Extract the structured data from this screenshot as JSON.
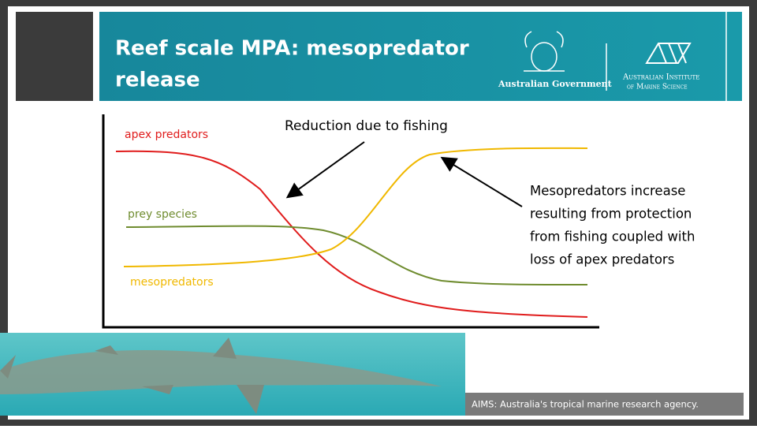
{
  "header": {
    "title_lines": [
      "Reef scale MPA: mesopredator",
      "release"
    ],
    "government": "Australian Government",
    "institute_lines": [
      "Australian Institute",
      "of Marine Science"
    ]
  },
  "diagram": {
    "curves": {
      "apex": "apex predators",
      "prey": "prey species",
      "meso": "mesopredators"
    },
    "annotations": {
      "reduction": "Reduction due to fishing",
      "increase_lines": [
        "Mesopredators increase",
        "resulting from protection",
        "from fishing coupled with",
        "loss of apex predators"
      ]
    }
  },
  "footer": {
    "text": "AIMS: Australia's tropical marine research agency."
  }
}
